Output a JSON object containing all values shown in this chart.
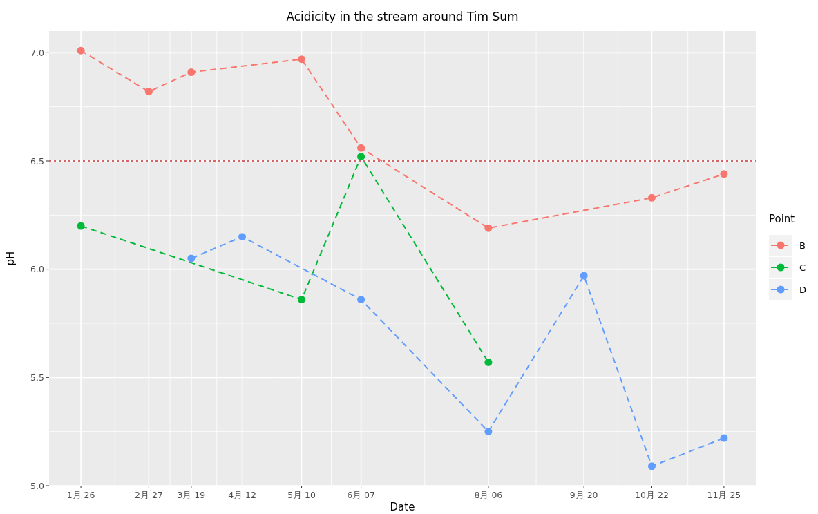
{
  "chart_data": {
    "type": "line",
    "title": "Acidicity in the stream around Tim Sum",
    "xlabel": "Date",
    "ylabel": "pH",
    "legend_title": "Point",
    "legend": "right",
    "grid": true,
    "marker": "circle",
    "line_style": "dashed",
    "xlim": [
      "--01-11",
      "--12-10"
    ],
    "xticks": [
      {
        "value": "--01-26",
        "label": "1月 26"
      },
      {
        "value": "--02-27",
        "label": "2月 27"
      },
      {
        "value": "--03-19",
        "label": "3月 19"
      },
      {
        "value": "--04-12",
        "label": "4月 12"
      },
      {
        "value": "--05-10",
        "label": "5月 10"
      },
      {
        "value": "--06-07",
        "label": "6月 07"
      },
      {
        "value": "--08-06",
        "label": "8月 06"
      },
      {
        "value": "--09-20",
        "label": "9月 20"
      },
      {
        "value": "--10-22",
        "label": "10月 22"
      },
      {
        "value": "--11-25",
        "label": "11月 25"
      }
    ],
    "ylim": [
      5.0,
      7.1
    ],
    "yticks": [
      {
        "value": 5.0,
        "label": "5.0"
      },
      {
        "value": 5.5,
        "label": "5.5"
      },
      {
        "value": 6.0,
        "label": "6.0"
      },
      {
        "value": 6.5,
        "label": "6.5"
      },
      {
        "value": 7.0,
        "label": "7.0"
      }
    ],
    "ref_lines": [
      {
        "axis": "y",
        "value": 6.5,
        "color": "#cc3333",
        "line_style": "dotted"
      }
    ],
    "series": [
      {
        "name": "B",
        "color": "#f8766d",
        "x": [
          "--01-26",
          "--02-27",
          "--03-19",
          "--05-10",
          "--06-07",
          "--08-06",
          "--10-22",
          "--11-25"
        ],
        "values": [
          7.01,
          6.82,
          6.91,
          6.97,
          6.56,
          6.19,
          6.33,
          6.44
        ]
      },
      {
        "name": "C",
        "color": "#00ba38",
        "x": [
          "--01-26",
          "--05-10",
          "--06-07",
          "--08-06"
        ],
        "values": [
          6.2,
          5.86,
          6.52,
          5.57
        ]
      },
      {
        "name": "D",
        "color": "#619cff",
        "x": [
          "--03-19",
          "--04-12",
          "--06-07",
          "--08-06",
          "--09-20",
          "--10-22",
          "--11-25"
        ],
        "values": [
          6.05,
          6.15,
          5.86,
          5.25,
          5.97,
          5.09,
          5.22
        ]
      }
    ]
  }
}
